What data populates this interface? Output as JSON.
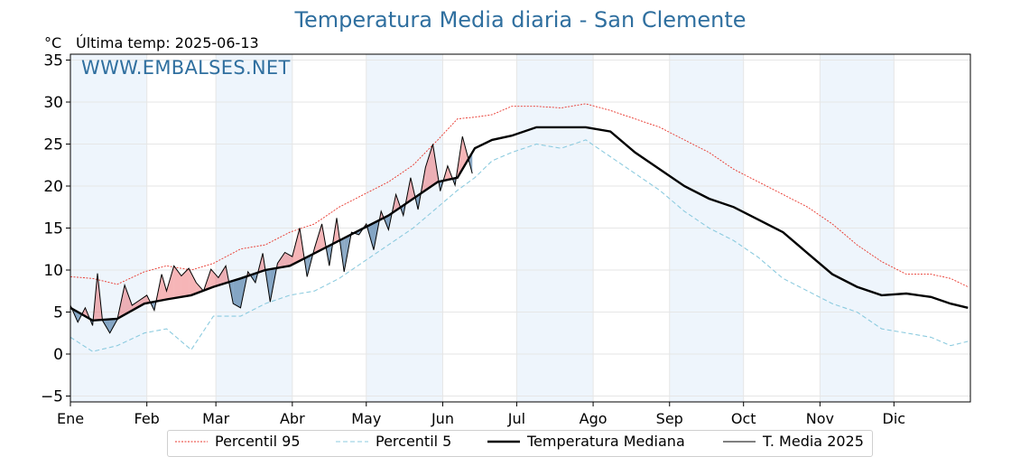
{
  "title": "Temperatura Media diaria - San Clemente",
  "unit_label": "°C",
  "last_temp_label": "Última temp: 2025-06-13",
  "watermark": "WWW.EMBALSES.NET",
  "colors": {
    "title": "#2f6f9f",
    "p95": "#e8342a",
    "p5": "#8ccbdf",
    "median": "#000000",
    "t2025": "#000000",
    "fill_above": "#e8474a",
    "fill_below": "#3d6f9e",
    "month_band": "#eef5fc"
  },
  "legend": {
    "p95": "Percentil 95",
    "p5": "Percentil 5",
    "median": "Temperatura Mediana",
    "t2025": "T. Media 2025"
  },
  "chart_data": {
    "type": "line",
    "title": "Temperatura Media diaria - San Clemente",
    "ylabel": "°C",
    "ylim": [
      -5.7,
      35.7
    ],
    "yticks": [
      -5,
      0,
      5,
      10,
      15,
      20,
      25,
      30,
      35
    ],
    "xlim": [
      1,
      366
    ],
    "months": [
      "Ene",
      "Feb",
      "Mar",
      "Abr",
      "May",
      "Jun",
      "Jul",
      "Ago",
      "Sep",
      "Oct",
      "Nov",
      "Dic"
    ],
    "grid": true,
    "series": [
      {
        "name": "Percentil 95",
        "x": [
          1,
          10,
          20,
          31,
          40,
          50,
          59,
          70,
          80,
          90,
          100,
          110,
          120,
          130,
          140,
          150,
          158,
          165,
          172,
          180,
          190,
          200,
          210,
          220,
          230,
          240,
          250,
          260,
          270,
          280,
          290,
          300,
          310,
          320,
          330,
          340,
          350,
          358,
          365
        ],
        "y": [
          9.2,
          9.0,
          8.3,
          9.8,
          10.5,
          10.0,
          10.8,
          12.5,
          13.0,
          14.5,
          15.5,
          17.5,
          19.0,
          20.5,
          22.5,
          25.5,
          28.0,
          28.2,
          28.5,
          29.5,
          29.5,
          29.3,
          29.8,
          29.0,
          28.0,
          27.0,
          25.5,
          24.0,
          22.0,
          20.5,
          19.0,
          17.5,
          15.5,
          13.0,
          11.0,
          9.5,
          9.5,
          9.0,
          8.0
        ]
      },
      {
        "name": "Percentil 5",
        "x": [
          1,
          10,
          20,
          31,
          40,
          50,
          59,
          70,
          80,
          90,
          100,
          110,
          120,
          130,
          140,
          150,
          158,
          165,
          172,
          180,
          190,
          200,
          210,
          220,
          230,
          240,
          250,
          260,
          270,
          280,
          290,
          300,
          310,
          320,
          330,
          340,
          350,
          358,
          365
        ],
        "y": [
          2.0,
          0.3,
          1.0,
          2.5,
          3.0,
          0.5,
          4.5,
          4.5,
          6.0,
          7.0,
          7.5,
          9.0,
          11.0,
          13.0,
          15.0,
          17.5,
          19.5,
          21.0,
          23.0,
          24.0,
          25.0,
          24.5,
          25.5,
          23.5,
          21.5,
          19.5,
          17.0,
          15.0,
          13.5,
          11.5,
          9.0,
          7.5,
          6.0,
          5.0,
          3.0,
          2.5,
          2.0,
          1.0,
          1.5
        ]
      },
      {
        "name": "Temperatura Mediana",
        "x": [
          1,
          10,
          20,
          31,
          40,
          50,
          59,
          70,
          80,
          90,
          100,
          110,
          120,
          130,
          140,
          150,
          158,
          165,
          172,
          180,
          190,
          200,
          210,
          220,
          230,
          240,
          250,
          260,
          270,
          280,
          290,
          300,
          310,
          320,
          330,
          340,
          350,
          358,
          365
        ],
        "y": [
          5.5,
          4.0,
          4.2,
          6.0,
          6.5,
          7.0,
          8.0,
          9.0,
          10.0,
          10.5,
          12.0,
          13.5,
          15.0,
          16.5,
          18.5,
          20.5,
          21.0,
          24.5,
          25.5,
          26.0,
          27.0,
          27.0,
          27.0,
          26.5,
          24.0,
          22.0,
          20.0,
          18.5,
          17.5,
          16.0,
          14.5,
          12.0,
          9.5,
          8.0,
          7.0,
          7.2,
          6.8,
          6.0,
          5.5
        ]
      },
      {
        "name": "T. Media 2025",
        "x": [
          1,
          4,
          7,
          10,
          12,
          14,
          17,
          20,
          23,
          26,
          29,
          32,
          35,
          38,
          40,
          43,
          46,
          49,
          52,
          55,
          58,
          61,
          64,
          67,
          70,
          73,
          76,
          79,
          82,
          85,
          88,
          91,
          94,
          97,
          100,
          103,
          106,
          109,
          112,
          115,
          118,
          121,
          124,
          127,
          130,
          133,
          136,
          139,
          142,
          145,
          148,
          151,
          154,
          157,
          160,
          164
        ],
        "y": [
          5.8,
          3.8,
          5.5,
          3.4,
          9.6,
          4.0,
          2.5,
          4.1,
          8.2,
          5.8,
          6.4,
          7.0,
          5.2,
          9.5,
          7.5,
          10.5,
          9.3,
          10.2,
          8.5,
          7.5,
          10.1,
          9.1,
          10.5,
          6.0,
          5.5,
          9.8,
          8.5,
          12.0,
          6.2,
          10.8,
          12.1,
          11.6,
          15.0,
          9.2,
          12.6,
          15.5,
          10.5,
          16.2,
          9.8,
          14.5,
          14.2,
          15.5,
          12.4,
          17.0,
          14.8,
          19.0,
          16.5,
          21.0,
          17.2,
          22.2,
          25.0,
          19.4,
          22.4,
          20.1,
          25.9,
          21.5
        ]
      }
    ]
  }
}
